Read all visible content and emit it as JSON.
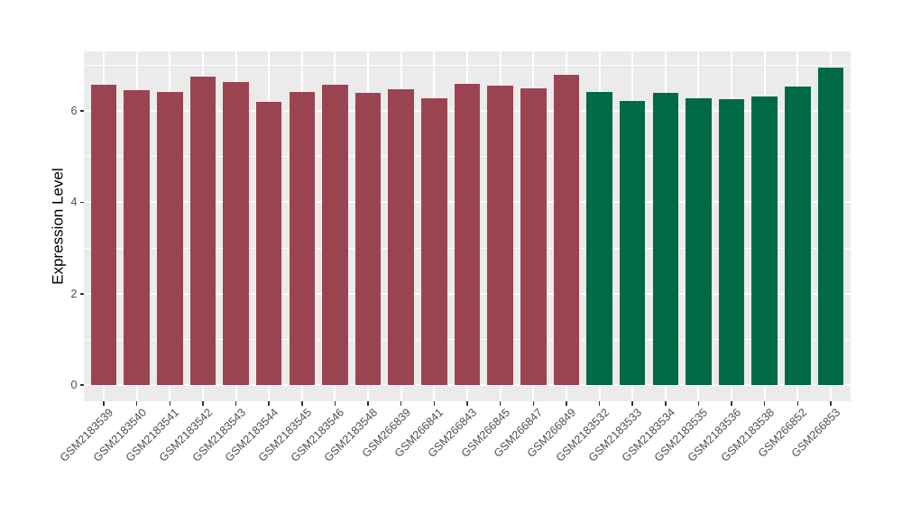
{
  "colors": {
    "page_background": "#FFFFFF",
    "panel_background": "#EBEBEB",
    "gridline": "#FFFFFF",
    "tick_mark": "#333333",
    "axis_text": "#4D4D4D",
    "axis_title": "#000000",
    "group1_bar": "#9A4452",
    "group2_bar": "#006948"
  },
  "chart_data": {
    "type": "bar",
    "title": "",
    "xlabel": "",
    "ylabel": "Expression Level",
    "legend": "none",
    "grid": "on",
    "panel_style": "ggplot-grey",
    "yticks": [
      0,
      2,
      4,
      6
    ],
    "yticks_minor": [
      1,
      3,
      5,
      7
    ],
    "ylim": [
      -0.35,
      7.3
    ],
    "bar_width_fraction": 0.78,
    "categories": [
      "GSM2183539",
      "GSM2183540",
      "GSM2183541",
      "GSM2183542",
      "GSM2183543",
      "GSM2183544",
      "GSM2183545",
      "GSM2183546",
      "GSM2183548",
      "GSM266839",
      "GSM266841",
      "GSM266843",
      "GSM266845",
      "GSM266847",
      "GSM266849",
      "GSM2183532",
      "GSM2183533",
      "GSM2183534",
      "GSM2183535",
      "GSM2183536",
      "GSM2183538",
      "GSM266852",
      "GSM266853"
    ],
    "values": [
      6.58,
      6.46,
      6.41,
      6.74,
      6.62,
      6.2,
      6.42,
      6.57,
      6.4,
      6.48,
      6.28,
      6.6,
      6.55,
      6.5,
      6.78,
      6.41,
      6.21,
      6.39,
      6.27,
      6.26,
      6.32,
      6.54,
      6.95
    ],
    "bar_colors": [
      "#9A4452",
      "#9A4452",
      "#9A4452",
      "#9A4452",
      "#9A4452",
      "#9A4452",
      "#9A4452",
      "#9A4452",
      "#9A4452",
      "#9A4452",
      "#9A4452",
      "#9A4452",
      "#9A4452",
      "#9A4452",
      "#9A4452",
      "#006948",
      "#006948",
      "#006948",
      "#006948",
      "#006948",
      "#006948",
      "#006948",
      "#006948"
    ]
  }
}
